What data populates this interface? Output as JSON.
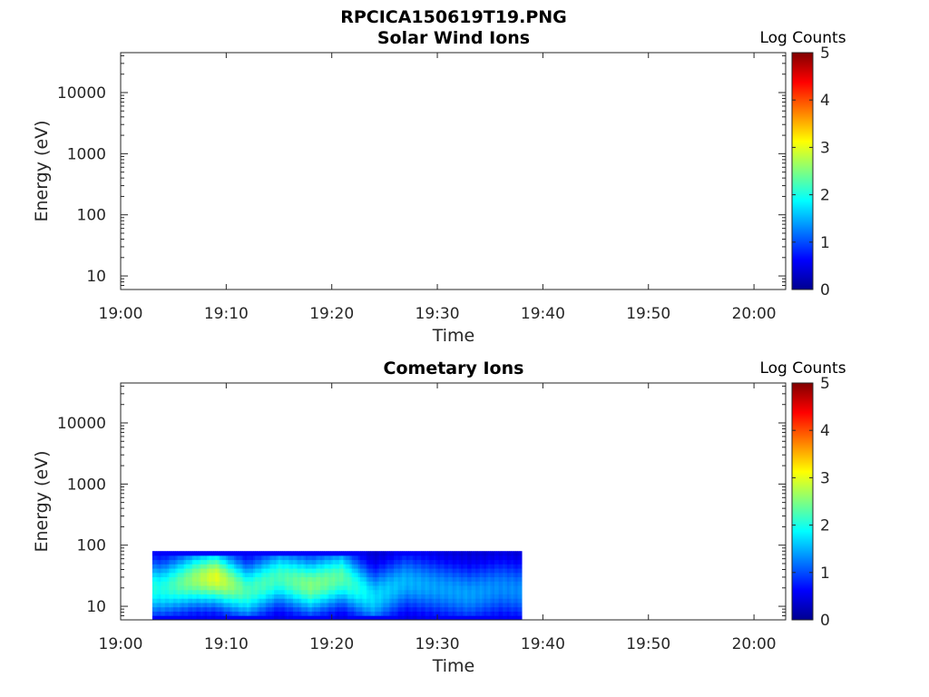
{
  "figure": {
    "title": "RPCICA150619T19.PNG"
  },
  "colors": {
    "axis": "#262626",
    "colormap": [
      "#00008f",
      "#0000ff",
      "#00ffff",
      "#ffff00",
      "#ff0000",
      "#800000"
    ]
  },
  "chart_data": [
    {
      "type": "heatmap",
      "title": "Solar Wind Ions",
      "xlabel": "Time",
      "ylabel": "Energy (eV)",
      "x_ticks": [
        "19:00",
        "19:10",
        "19:20",
        "19:30",
        "19:40",
        "19:50",
        "20:00"
      ],
      "y_ticks": [
        "10",
        "100",
        "1000",
        "10000"
      ],
      "yscale": "log",
      "xlim": [
        "19:00",
        "20:03"
      ],
      "ylim": [
        6,
        45000
      ],
      "colorbar": {
        "label": "Log Counts",
        "range": [
          0,
          5
        ],
        "ticks": [
          "0",
          "1",
          "2",
          "3",
          "4",
          "5"
        ]
      },
      "data": []
    },
    {
      "type": "heatmap",
      "title": "Cometary Ions",
      "xlabel": "Time",
      "ylabel": "Energy (eV)",
      "x_ticks": [
        "19:00",
        "19:10",
        "19:20",
        "19:30",
        "19:40",
        "19:50",
        "20:00"
      ],
      "y_ticks": [
        "10",
        "100",
        "1000",
        "10000"
      ],
      "yscale": "log",
      "xlim": [
        "19:00",
        "20:03"
      ],
      "ylim": [
        6,
        45000
      ],
      "colorbar": {
        "label": "Log Counts",
        "range": [
          0,
          5
        ],
        "ticks": [
          "0",
          "1",
          "2",
          "3",
          "4",
          "5"
        ]
      },
      "data_extent": {
        "time_start": "19:03",
        "time_end": "19:38",
        "energy_min": 6,
        "energy_max": 80
      },
      "data_profile": [
        {
          "time": "19:04",
          "peak_energy": 20,
          "peak_log_counts": 2.0
        },
        {
          "time": "19:07",
          "peak_energy": 28,
          "peak_log_counts": 2.6
        },
        {
          "time": "19:09",
          "peak_energy": 30,
          "peak_log_counts": 3.0
        },
        {
          "time": "19:12",
          "peak_energy": 18,
          "peak_log_counts": 2.2
        },
        {
          "time": "19:15",
          "peak_energy": 30,
          "peak_log_counts": 2.2
        },
        {
          "time": "19:18",
          "peak_energy": 22,
          "peak_log_counts": 2.5
        },
        {
          "time": "19:21",
          "peak_energy": 30,
          "peak_log_counts": 2.3
        },
        {
          "time": "19:24",
          "peak_energy": 14,
          "peak_log_counts": 1.7
        },
        {
          "time": "19:27",
          "peak_energy": 25,
          "peak_log_counts": 1.5
        },
        {
          "time": "19:30",
          "peak_energy": 20,
          "peak_log_counts": 1.4
        },
        {
          "time": "19:33",
          "peak_energy": 16,
          "peak_log_counts": 1.4
        },
        {
          "time": "19:36",
          "peak_energy": 20,
          "peak_log_counts": 1.3
        },
        {
          "time": "19:38",
          "peak_energy": 18,
          "peak_log_counts": 1.3
        }
      ]
    }
  ]
}
